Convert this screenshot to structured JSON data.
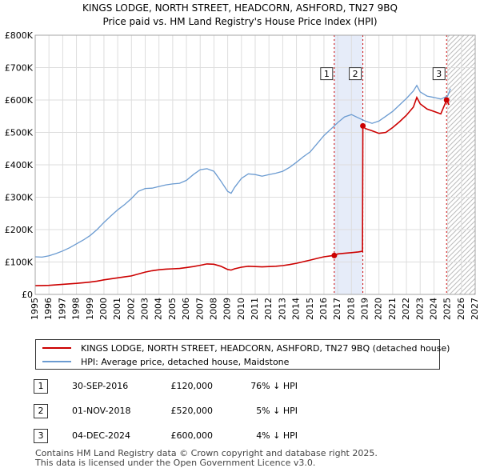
{
  "chart_data": {
    "type": "line",
    "title": "KINGS LODGE, NORTH STREET, HEADCORN, ASHFORD, TN27 9BQ",
    "subtitle": "Price paid vs. HM Land Registry's House Price Index (HPI)",
    "xlim": [
      1995,
      2027
    ],
    "ylim": [
      0,
      800000
    ],
    "x_ticks": [
      1995,
      1996,
      1997,
      1998,
      1999,
      2000,
      2001,
      2002,
      2003,
      2004,
      2005,
      2006,
      2007,
      2008,
      2009,
      2010,
      2011,
      2012,
      2013,
      2014,
      2015,
      2016,
      2017,
      2018,
      2019,
      2020,
      2021,
      2022,
      2023,
      2024,
      2025,
      2026,
      2027
    ],
    "y_ticks": [
      {
        "value": 0,
        "label": "£0"
      },
      {
        "value": 100000,
        "label": "£100K"
      },
      {
        "value": 200000,
        "label": "£200K"
      },
      {
        "value": 300000,
        "label": "£300K"
      },
      {
        "value": 400000,
        "label": "£400K"
      },
      {
        "value": 500000,
        "label": "£500K"
      },
      {
        "value": 600000,
        "label": "£600K"
      },
      {
        "value": 700000,
        "label": "£700K"
      },
      {
        "value": 800000,
        "label": "£800K"
      }
    ],
    "forecast_start": 2025.0,
    "shaded_periods": [
      {
        "from": 2016.75,
        "to": 2018.83
      }
    ],
    "markers": [
      {
        "label": "1",
        "x": 2016.75,
        "price": 120000,
        "box_value": 680000
      },
      {
        "label": "2",
        "x": 2018.83,
        "price": 520000,
        "box_value": 680000
      },
      {
        "label": "3",
        "x": 2024.92,
        "price": 600000,
        "box_value": 680000
      }
    ],
    "series": [
      {
        "name": "KINGS LODGE, NORTH STREET, HEADCORN, ASHFORD, TN27 9BQ (detached house)",
        "color": "#cc0000",
        "x": [
          1995.0,
          1995.5,
          1996.0,
          1996.5,
          1997.0,
          1997.5,
          1998.0,
          1998.5,
          1999.0,
          1999.5,
          2000.0,
          2000.5,
          2001.0,
          2001.5,
          2002.0,
          2002.5,
          2003.0,
          2003.5,
          2004.0,
          2004.5,
          2005.0,
          2005.5,
          2006.0,
          2006.5,
          2007.0,
          2007.5,
          2008.0,
          2008.5,
          2009.0,
          2009.25,
          2009.5,
          2010.0,
          2010.5,
          2011.0,
          2011.5,
          2012.0,
          2012.5,
          2013.0,
          2013.5,
          2014.0,
          2014.5,
          2015.0,
          2015.5,
          2016.0,
          2016.5,
          2016.75,
          2017.0,
          2017.5,
          2018.0,
          2018.5,
          2018.8,
          2018.83,
          2019.0,
          2019.5,
          2020.0,
          2020.5,
          2021.0,
          2021.5,
          2022.0,
          2022.5,
          2022.75,
          2023.0,
          2023.5,
          2024.0,
          2024.5,
          2024.92,
          2025.1
        ],
        "values": [
          27000,
          27500,
          28000,
          29500,
          31000,
          32500,
          34000,
          36000,
          38000,
          41000,
          45000,
          48000,
          51000,
          54000,
          57000,
          63000,
          69000,
          73000,
          76000,
          78000,
          79000,
          80000,
          83000,
          86000,
          90000,
          94000,
          93000,
          87000,
          77000,
          75000,
          79000,
          84000,
          87000,
          86000,
          85000,
          86000,
          87000,
          89000,
          92000,
          96000,
          101000,
          106000,
          111000,
          116000,
          119000,
          120000,
          125000,
          127000,
          129000,
          131000,
          133000,
          520000,
          512000,
          505000,
          497000,
          500000,
          515000,
          533000,
          553000,
          578000,
          608000,
          588000,
          572000,
          565000,
          557000,
          600000,
          585000
        ]
      },
      {
        "name": "HPI: Average price, detached house, Maidstone",
        "color": "#6b9bd1",
        "x": [
          1995.0,
          1995.5,
          1996.0,
          1996.5,
          1997.0,
          1997.5,
          1998.0,
          1998.5,
          1999.0,
          1999.5,
          2000.0,
          2000.5,
          2001.0,
          2001.5,
          2002.0,
          2002.5,
          2003.0,
          2003.5,
          2004.0,
          2004.5,
          2005.0,
          2005.5,
          2006.0,
          2006.5,
          2007.0,
          2007.5,
          2008.0,
          2008.5,
          2009.0,
          2009.25,
          2009.5,
          2010.0,
          2010.5,
          2011.0,
          2011.5,
          2012.0,
          2012.5,
          2013.0,
          2013.5,
          2014.0,
          2014.5,
          2015.0,
          2015.5,
          2016.0,
          2016.5,
          2017.0,
          2017.5,
          2018.0,
          2018.5,
          2019.0,
          2019.5,
          2020.0,
          2020.5,
          2021.0,
          2021.5,
          2022.0,
          2022.5,
          2022.75,
          2023.0,
          2023.5,
          2024.0,
          2024.5,
          2025.0,
          2025.2
        ],
        "values": [
          116000,
          115000,
          119000,
          126000,
          134000,
          144000,
          156000,
          168000,
          182000,
          200000,
          222000,
          242000,
          261000,
          277000,
          296000,
          318000,
          327000,
          328000,
          333000,
          338000,
          341000,
          343000,
          352000,
          370000,
          385000,
          388000,
          380000,
          350000,
          318000,
          312000,
          330000,
          358000,
          372000,
          370000,
          365000,
          370000,
          374000,
          380000,
          392000,
          408000,
          425000,
          440000,
          465000,
          490000,
          510000,
          530000,
          548000,
          555000,
          545000,
          535000,
          528000,
          535000,
          550000,
          565000,
          585000,
          605000,
          628000,
          645000,
          625000,
          612000,
          608000,
          603000,
          612000,
          635000
        ]
      }
    ]
  },
  "legend": {
    "property_label": "KINGS LODGE, NORTH STREET, HEADCORN, ASHFORD, TN27 9BQ (detached house)",
    "hpi_label": "HPI: Average price, detached house, Maidstone"
  },
  "transactions": [
    {
      "num": "1",
      "date": "30-SEP-2016",
      "price": "£120,000",
      "hpi": "76% ↓ HPI"
    },
    {
      "num": "2",
      "date": "01-NOV-2018",
      "price": "£520,000",
      "hpi": "5% ↓ HPI"
    },
    {
      "num": "3",
      "date": "04-DEC-2024",
      "price": "£600,000",
      "hpi": "4% ↓ HPI"
    }
  ],
  "footer": {
    "line1": "Contains HM Land Registry data © Crown copyright and database right 2025.",
    "line2": "This data is licensed under the Open Government Licence v3.0."
  }
}
